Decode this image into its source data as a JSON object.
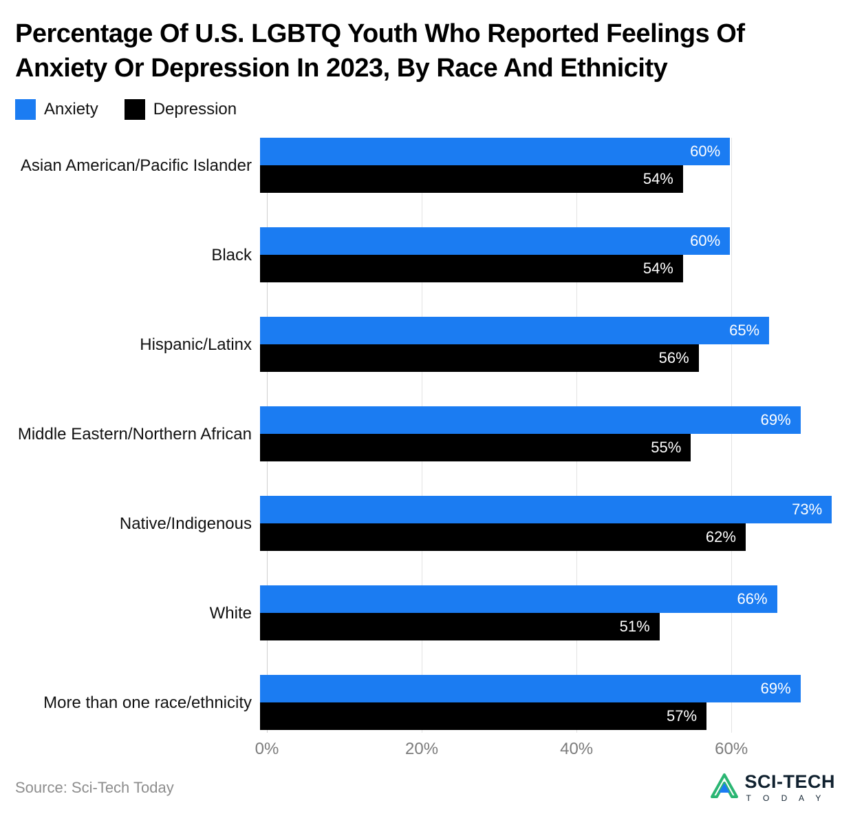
{
  "title": "Percentage Of U.S. LGBTQ Youth Who Reported Feelings Of Anxiety Or Depression In 2023, By Race And Ethnicity",
  "legend": {
    "anxiety_label": "Anxiety",
    "depression_label": "Depression"
  },
  "colors": {
    "anxiety": "#1b7cf2",
    "depression": "#000000",
    "gridline": "#e2e2e2",
    "tick_text": "#7b7b7b"
  },
  "chart_data": {
    "type": "bar",
    "orientation": "horizontal",
    "title": "Percentage Of U.S. LGBTQ Youth Who Reported Feelings Of Anxiety Or Depression In 2023, By Race And Ethnicity",
    "categories": [
      "Asian American/Pacific Islander",
      "Black",
      "Hispanic/Latinx",
      "Middle Eastern/Northern African",
      "Native/Indigenous",
      "White",
      "More than one race/ethnicity"
    ],
    "series": [
      {
        "name": "Anxiety",
        "color": "#1b7cf2",
        "values": [
          60,
          60,
          65,
          69,
          73,
          66,
          69
        ]
      },
      {
        "name": "Depression",
        "color": "#000000",
        "values": [
          54,
          54,
          56,
          55,
          62,
          51,
          57
        ]
      }
    ],
    "value_suffix": "%",
    "xlim": [
      0,
      75
    ],
    "ticks": [
      {
        "value": 0,
        "label": "0%"
      },
      {
        "value": 20,
        "label": "20%"
      },
      {
        "value": 40,
        "label": "40%"
      },
      {
        "value": 60,
        "label": "60%"
      }
    ],
    "grid": true,
    "legend_position": "top-left"
  },
  "footer": {
    "source": "Source: Sci-Tech Today",
    "logo_line1": "SCI-TECH",
    "logo_line2": "T O D A Y"
  }
}
